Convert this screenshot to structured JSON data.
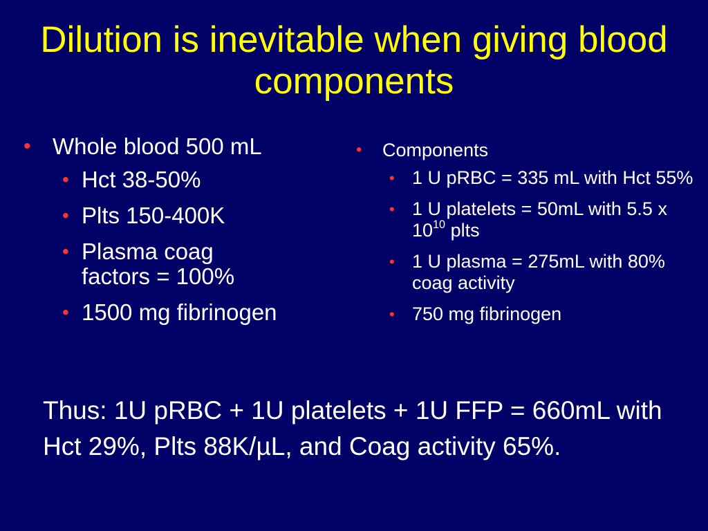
{
  "slide": {
    "title": "Dilution is inevitable when giving blood components",
    "bullet_glyph": "•",
    "left_column": {
      "heading": "Whole blood 500 mL",
      "items": [
        "Hct 38-50%",
        "Plts 150-400K",
        "Plasma coag factors = 100%",
        "1500 mg fibrinogen"
      ]
    },
    "right_column": {
      "heading": "Components",
      "items": [
        {
          "text": "1 U pRBC = 335 mL with Hct 55%"
        },
        {
          "text_before": "1 U platelets = 50mL with 5.5 x 10",
          "superscript": "10",
          "text_after": " plts"
        },
        {
          "text": "1 U plasma = 275mL with 80% coag activity"
        },
        {
          "text": "750 mg fibrinogen"
        }
      ]
    },
    "conclusion": "Thus: 1U pRBC + 1U platelets + 1U FFP = 660mL with Hct 29%, Plts 88K/µL, and Coag activity 65%.",
    "colors": {
      "background": "#000066",
      "title": "#ffff00",
      "body_text": "#ffffff",
      "bullet": "#ff3333"
    }
  }
}
